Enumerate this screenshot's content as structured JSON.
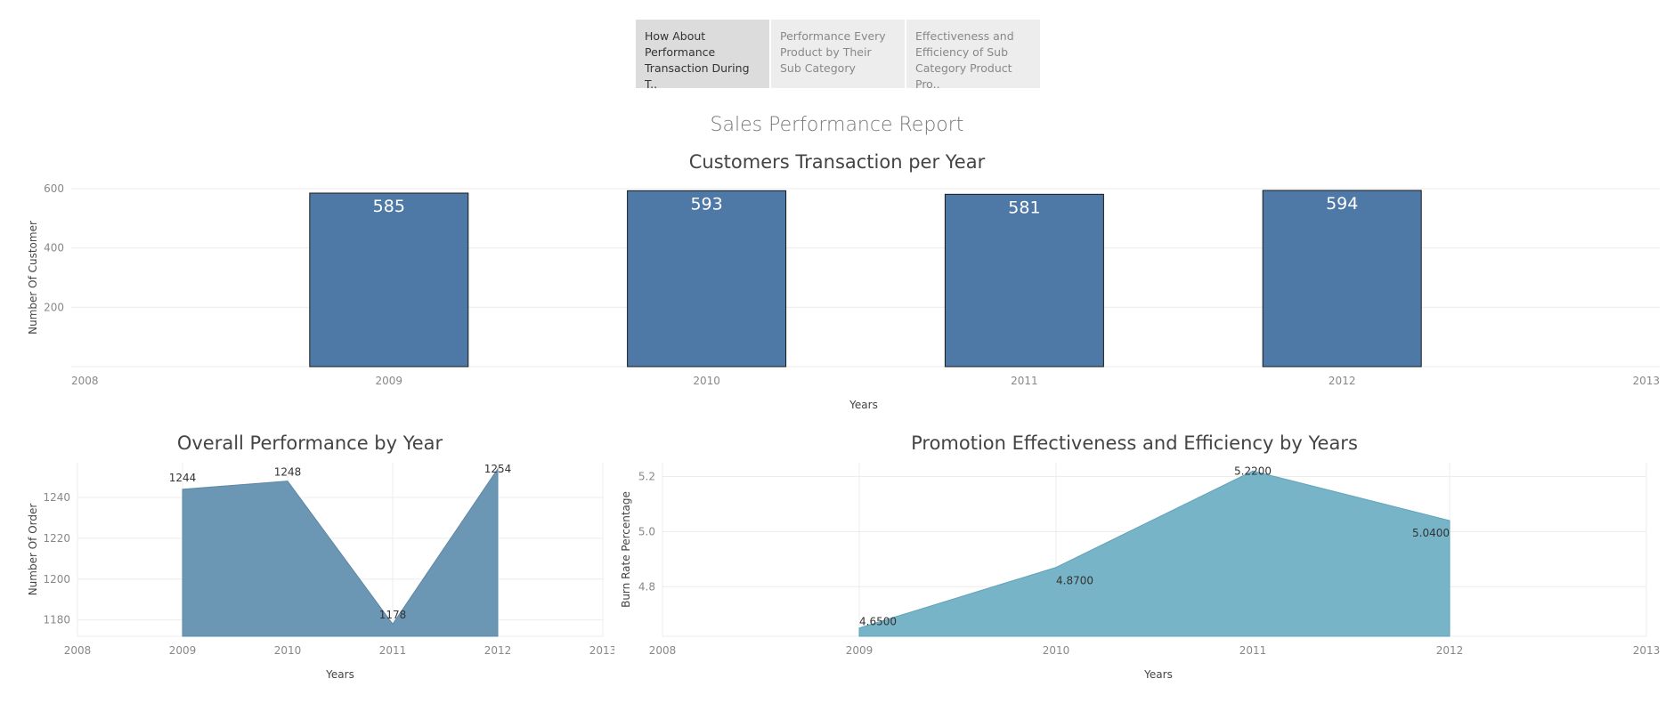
{
  "tabs": [
    {
      "label": "How About Performance Transaction During T..",
      "active": true
    },
    {
      "label": "Performance Every Product by Their Sub Category",
      "active": false
    },
    {
      "label": "Effectiveness and Efficiency of Sub Category Product Pro..",
      "active": false
    }
  ],
  "report_title": "Sales Performance Report",
  "colors": {
    "bar": "#4e79a7",
    "area_dark": "#6b97b4",
    "area_light": "#78b4c8",
    "grid": "#ececec",
    "axis_text": "#888888"
  },
  "chart_data": [
    {
      "type": "bar",
      "title": "Customers Transaction per Year",
      "xlabel": "Years",
      "ylabel": "Number Of Customer",
      "x_ticks": [
        "2008",
        "2009",
        "2010",
        "2011",
        "2012",
        "2013"
      ],
      "categories": [
        "2009",
        "2010",
        "2011",
        "2012"
      ],
      "values": [
        585,
        593,
        581,
        594
      ],
      "data_labels": [
        "585",
        "593",
        "581",
        "594"
      ],
      "y_ticks": [
        "200",
        "400",
        "600"
      ],
      "ylim": [
        0,
        600
      ],
      "xlim": [
        2008,
        2013
      ],
      "grid": true
    },
    {
      "type": "area",
      "title": "Overall Performance by Year",
      "xlabel": "Years",
      "ylabel": "Number Of Order",
      "x_ticks": [
        "2008",
        "2009",
        "2010",
        "2011",
        "2012",
        "2013"
      ],
      "x": [
        2009,
        2010,
        2011,
        2012
      ],
      "values": [
        1244,
        1248,
        1178,
        1254
      ],
      "data_labels": [
        "1244",
        "1248",
        "1178",
        "1254"
      ],
      "y_ticks": [
        "1180",
        "1200",
        "1220",
        "1240"
      ],
      "ylim": [
        1172,
        1257
      ],
      "xlim": [
        2008,
        2013
      ],
      "grid": true
    },
    {
      "type": "area",
      "title": "Promotion Effectiveness and Efficiency by Years",
      "xlabel": "Years",
      "ylabel": "Burn Rate Percentage",
      "x_ticks": [
        "2008",
        "2009",
        "2010",
        "2011",
        "2012",
        "2013"
      ],
      "x": [
        2009,
        2010,
        2011,
        2012
      ],
      "values": [
        4.65,
        4.87,
        5.22,
        5.04
      ],
      "data_labels": [
        "4.6500",
        "4.8700",
        "5.2200",
        "5.0400"
      ],
      "y_ticks": [
        "4.8",
        "5.0",
        "5.2"
      ],
      "ylim": [
        4.62,
        5.25
      ],
      "xlim": [
        2008,
        2013
      ],
      "grid": true
    }
  ]
}
